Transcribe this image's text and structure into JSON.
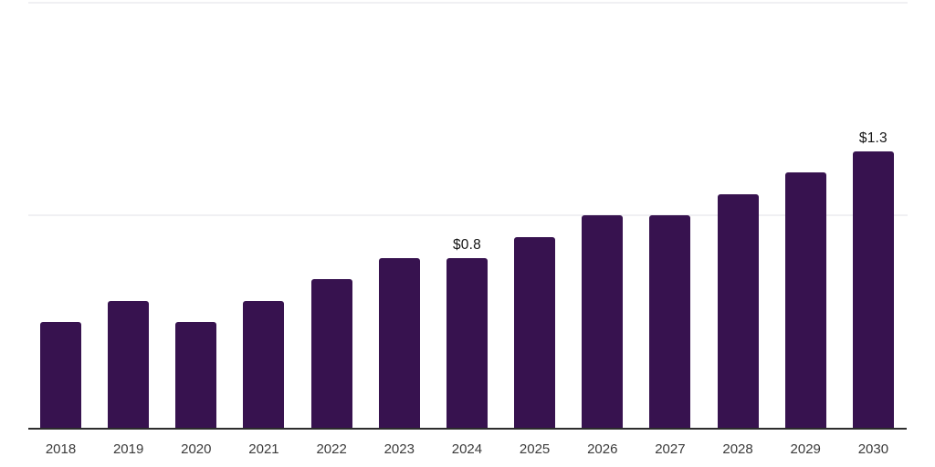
{
  "chart_data": {
    "type": "bar",
    "title": "",
    "xlabel": "",
    "ylabel": "",
    "categories": [
      "2018",
      "2019",
      "2020",
      "2021",
      "2022",
      "2023",
      "2024",
      "2025",
      "2026",
      "2027",
      "2028",
      "2029",
      "2030"
    ],
    "values": [
      0.5,
      0.6,
      0.5,
      0.6,
      0.7,
      0.8,
      0.8,
      0.9,
      1.0,
      1.0,
      1.1,
      1.2,
      1.3
    ],
    "data_labels": {
      "2024": "$0.8",
      "2030": "$1.3"
    },
    "ylim": [
      0,
      2.0
    ],
    "gridline_values": [
      1.0,
      2.0
    ],
    "grid": "horizontal-only",
    "legend": "none",
    "colors": {
      "bar": "#37124f",
      "axis_line": "#2d2d2d",
      "gridline": "#f0f0f3",
      "tick_label": "#3a3a3a",
      "value_label": "#141414",
      "background": "#ffffff"
    }
  }
}
